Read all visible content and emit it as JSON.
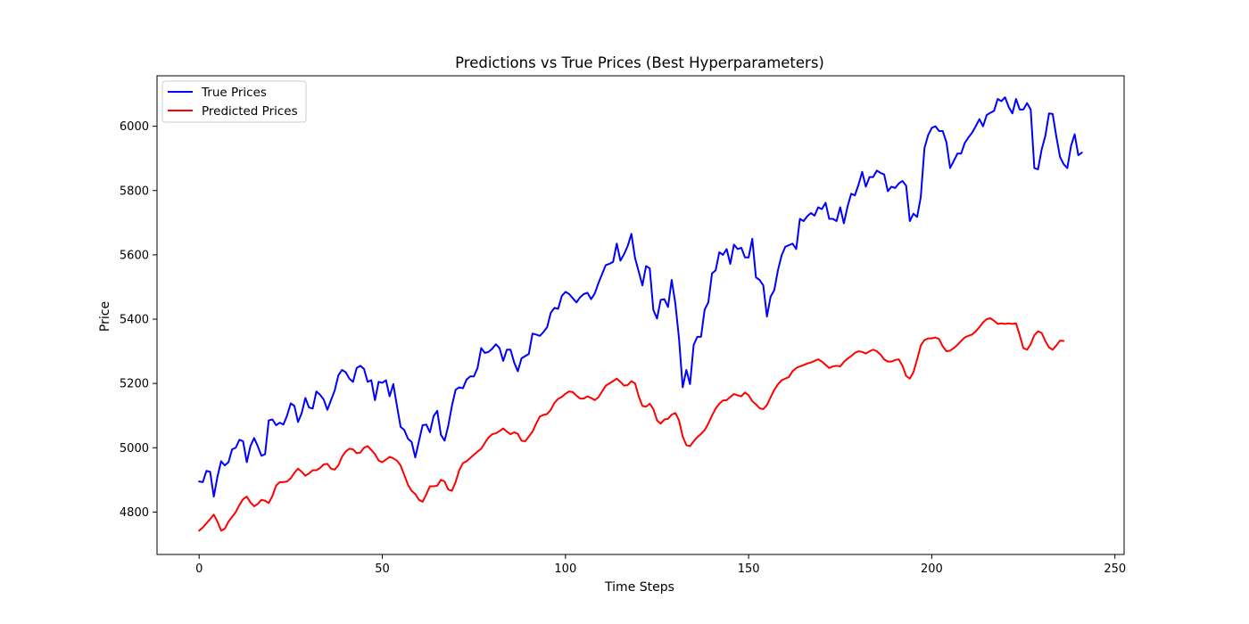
{
  "chart_data": {
    "type": "line",
    "title": "Predictions vs True Prices (Best Hyperparameters)",
    "xlabel": "Time Steps",
    "ylabel": "Price",
    "xlim": [
      -11.5,
      252.5
    ],
    "ylim": [
      4668,
      6157
    ],
    "xticks": [
      0,
      50,
      100,
      150,
      200,
      250
    ],
    "yticks": [
      4800,
      5000,
      5200,
      5400,
      5600,
      5800,
      6000
    ],
    "grid": false,
    "legend_position": "top-left",
    "series": [
      {
        "name": "True Prices",
        "color": "#0000ff",
        "values": [
          4895,
          4893,
          4928,
          4925,
          4848,
          4910,
          4958,
          4945,
          4955,
          4995,
          5000,
          5025,
          5020,
          4955,
          5005,
          5030,
          5005,
          4975,
          4980,
          5085,
          5088,
          5070,
          5078,
          5072,
          5100,
          5138,
          5130,
          5080,
          5108,
          5155,
          5125,
          5122,
          5175,
          5165,
          5150,
          5118,
          5148,
          5178,
          5225,
          5242,
          5235,
          5215,
          5205,
          5248,
          5255,
          5245,
          5205,
          5210,
          5148,
          5205,
          5202,
          5210,
          5160,
          5198,
          5130,
          5065,
          5055,
          5028,
          5018,
          4970,
          5020,
          5070,
          5072,
          5048,
          5098,
          5115,
          5040,
          5022,
          5068,
          5130,
          5180,
          5188,
          5185,
          5212,
          5222,
          5222,
          5248,
          5310,
          5295,
          5298,
          5308,
          5322,
          5310,
          5270,
          5305,
          5305,
          5265,
          5238,
          5278,
          5285,
          5292,
          5355,
          5352,
          5348,
          5360,
          5375,
          5420,
          5435,
          5432,
          5472,
          5485,
          5478,
          5465,
          5452,
          5468,
          5478,
          5482,
          5462,
          5480,
          5512,
          5540,
          5568,
          5572,
          5578,
          5635,
          5582,
          5602,
          5628,
          5665,
          5590,
          5548,
          5505,
          5565,
          5558,
          5428,
          5402,
          5460,
          5462,
          5438,
          5522,
          5448,
          5340,
          5188,
          5242,
          5198,
          5320,
          5345,
          5345,
          5430,
          5452,
          5542,
          5552,
          5608,
          5600,
          5618,
          5572,
          5632,
          5618,
          5622,
          5592,
          5592,
          5650,
          5530,
          5522,
          5505,
          5408,
          5470,
          5490,
          5552,
          5598,
          5625,
          5630,
          5635,
          5618,
          5712,
          5705,
          5720,
          5730,
          5722,
          5748,
          5742,
          5762,
          5712,
          5712,
          5705,
          5748,
          5698,
          5750,
          5790,
          5785,
          5818,
          5858,
          5812,
          5842,
          5842,
          5862,
          5855,
          5850,
          5798,
          5812,
          5808,
          5822,
          5830,
          5815,
          5705,
          5728,
          5718,
          5780,
          5932,
          5972,
          5995,
          6000,
          5985,
          5985,
          5950,
          5870,
          5892,
          5915,
          5915,
          5948,
          5965,
          5980,
          6000,
          6022,
          6000,
          6035,
          6042,
          6048,
          6085,
          6078,
          6090,
          6060,
          6040,
          6085,
          6052,
          6052,
          6072,
          6052,
          5870,
          5866,
          5928,
          5970,
          6040,
          6038,
          5968,
          5905,
          5882,
          5870,
          5938,
          5975,
          5910,
          5918
        ]
      },
      {
        "name": "Predicted Prices",
        "color": "#ff0000",
        "values": [
          4742,
          4752,
          4765,
          4778,
          4792,
          4770,
          4742,
          4748,
          4770,
          4785,
          4800,
          4822,
          4840,
          4848,
          4830,
          4818,
          4825,
          4838,
          4835,
          4828,
          4850,
          4882,
          4893,
          4893,
          4895,
          4905,
          4922,
          4935,
          4925,
          4913,
          4920,
          4930,
          4930,
          4937,
          4948,
          4950,
          4935,
          4932,
          4945,
          4972,
          4988,
          4997,
          4995,
          4983,
          4985,
          5000,
          5005,
          4993,
          4980,
          4960,
          4955,
          4963,
          4972,
          4967,
          4960,
          4945,
          4915,
          4885,
          4866,
          4856,
          4838,
          4832,
          4855,
          4880,
          4880,
          4882,
          4900,
          4895,
          4870,
          4866,
          4893,
          4930,
          4952,
          4958,
          4968,
          4978,
          4988,
          4997,
          5015,
          5032,
          5042,
          5045,
          5052,
          5060,
          5050,
          5042,
          5048,
          5043,
          5022,
          5020,
          5035,
          5050,
          5075,
          5097,
          5102,
          5105,
          5118,
          5140,
          5152,
          5158,
          5168,
          5175,
          5173,
          5162,
          5153,
          5153,
          5160,
          5155,
          5148,
          5157,
          5175,
          5193,
          5200,
          5207,
          5215,
          5205,
          5193,
          5195,
          5207,
          5200,
          5160,
          5130,
          5128,
          5137,
          5120,
          5085,
          5075,
          5088,
          5090,
          5103,
          5108,
          5085,
          5035,
          5008,
          5005,
          5020,
          5033,
          5043,
          5055,
          5075,
          5100,
          5122,
          5137,
          5147,
          5148,
          5158,
          5167,
          5163,
          5160,
          5172,
          5163,
          5145,
          5135,
          5123,
          5120,
          5133,
          5157,
          5180,
          5197,
          5210,
          5215,
          5220,
          5238,
          5248,
          5253,
          5257,
          5262,
          5265,
          5270,
          5275,
          5268,
          5258,
          5248,
          5253,
          5255,
          5253,
          5267,
          5277,
          5285,
          5295,
          5300,
          5298,
          5293,
          5300,
          5305,
          5300,
          5290,
          5275,
          5268,
          5268,
          5273,
          5275,
          5255,
          5223,
          5215,
          5235,
          5275,
          5318,
          5335,
          5340,
          5340,
          5343,
          5338,
          5315,
          5300,
          5302,
          5310,
          5320,
          5332,
          5343,
          5348,
          5352,
          5362,
          5375,
          5390,
          5400,
          5403,
          5395,
          5385,
          5387,
          5385,
          5387,
          5385,
          5387,
          5350,
          5310,
          5305,
          5322,
          5350,
          5362,
          5357,
          5332,
          5312,
          5305,
          5318,
          5333,
          5332
        ]
      }
    ]
  }
}
